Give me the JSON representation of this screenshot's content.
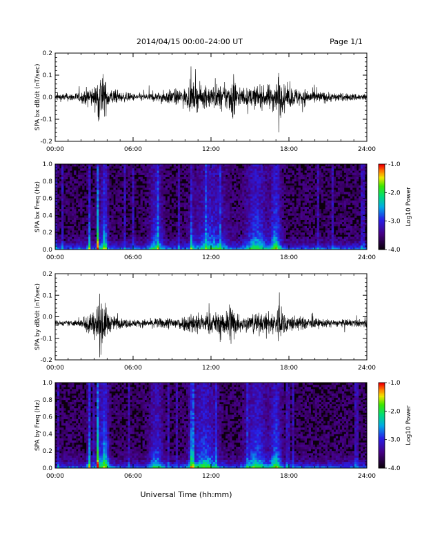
{
  "header": {
    "title": "2014/04/15  00:00–24:00 UT",
    "page": "Page 1/1"
  },
  "xlabel": "Universal Time (hh:mm)",
  "chart_data": [
    {
      "type": "line",
      "ylabel": "SPA bx dB/dt (nT/sec)",
      "xlim": [
        0,
        24
      ],
      "ylim": [
        -0.2,
        0.2
      ],
      "xticks": [
        "00:00",
        "06:00",
        "12:00",
        "18:00",
        "24:00"
      ],
      "yticks": [
        "-0.2",
        "-0.1",
        "0.0",
        "0.1",
        "0.2"
      ],
      "series": [
        {
          "x": [
            0,
            1,
            2,
            2.7,
            3,
            3.4,
            3.6,
            3.8,
            4.2,
            5,
            6,
            7,
            8,
            9,
            10,
            10.5,
            11,
            11.5,
            12,
            12.5,
            13,
            13.5,
            13.8,
            14,
            14.5,
            15,
            15.5,
            16,
            16.5,
            17,
            17.2,
            17.5,
            18,
            19,
            20,
            21,
            22,
            23,
            24
          ],
          "amplitude": [
            0.03,
            0.03,
            0.04,
            0.09,
            0.06,
            0.22,
            0.22,
            0.14,
            0.07,
            0.04,
            0.03,
            0.03,
            0.04,
            0.06,
            0.07,
            0.11,
            0.1,
            0.08,
            0.09,
            0.1,
            0.09,
            0.13,
            0.22,
            0.08,
            0.07,
            0.07,
            0.09,
            0.08,
            0.1,
            0.12,
            0.22,
            0.1,
            0.08,
            0.07,
            0.05,
            0.04,
            0.03,
            0.03,
            0.03
          ]
        }
      ]
    },
    {
      "type": "heatmap",
      "ylabel": "SPA bx Freq (Hz)",
      "xlim": [
        0,
        24
      ],
      "ylim": [
        0,
        1.0
      ],
      "xticks": [
        "00:00",
        "06:00",
        "12:00",
        "18:00",
        "24:00"
      ],
      "yticks": [
        "0.0",
        "0.2",
        "0.4",
        "0.6",
        "0.8",
        "1.0"
      ],
      "colorbar": {
        "label": "Log10 Power",
        "range": [
          -4.0,
          -1.0
        ],
        "ticks": [
          "-1.0",
          "-2.0",
          "-3.0",
          "-4.0"
        ]
      },
      "hotspots": [
        {
          "t": 2.6,
          "spread": 0.08,
          "strength": 0.5
        },
        {
          "t": 3.3,
          "spread": 0.1,
          "strength": 0.7
        },
        {
          "t": 3.8,
          "spread": 0.25,
          "strength": 0.45
        },
        {
          "t": 7.8,
          "spread": 0.5,
          "strength": 0.3
        },
        {
          "t": 10.5,
          "spread": 0.12,
          "strength": 0.35
        },
        {
          "t": 12.0,
          "spread": 1.2,
          "strength": 0.3
        },
        {
          "t": 15.5,
          "spread": 0.8,
          "strength": 0.35
        },
        {
          "t": 17.0,
          "spread": 0.4,
          "strength": 0.4
        }
      ]
    },
    {
      "type": "line",
      "ylabel": "SPA by dB/dt (nT/sec)",
      "xlim": [
        0,
        24
      ],
      "ylim": [
        -0.2,
        0.2
      ],
      "xticks": [
        "00:00",
        "06:00",
        "12:00",
        "18:00",
        "24:00"
      ],
      "yticks": [
        "-0.2",
        "-0.1",
        "0.0",
        "0.1",
        "0.2"
      ],
      "series": [
        {
          "x": [
            0,
            1,
            2,
            2.7,
            3,
            3.4,
            3.6,
            3.8,
            4.2,
            5,
            6,
            7,
            8,
            9,
            10,
            10.5,
            11,
            11.5,
            12,
            12.5,
            13,
            13.5,
            14,
            14.5,
            15,
            15.5,
            16,
            16.5,
            17,
            17.2,
            17.5,
            18,
            19,
            20,
            21,
            22,
            23,
            24
          ],
          "amplitude": [
            0.02,
            0.02,
            0.03,
            0.12,
            0.08,
            0.22,
            0.22,
            0.16,
            0.07,
            0.04,
            0.03,
            0.03,
            0.04,
            0.05,
            0.06,
            0.09,
            0.09,
            0.07,
            0.08,
            0.09,
            0.08,
            0.2,
            0.08,
            0.06,
            0.07,
            0.09,
            0.07,
            0.09,
            0.1,
            0.18,
            0.09,
            0.07,
            0.05,
            0.04,
            0.03,
            0.03,
            0.03,
            0.03
          ]
        }
      ]
    },
    {
      "type": "heatmap",
      "ylabel": "SPA by Freq (Hz)",
      "xlim": [
        0,
        24
      ],
      "ylim": [
        0,
        1.0
      ],
      "xticks": [
        "00:00",
        "06:00",
        "12:00",
        "18:00",
        "24:00"
      ],
      "yticks": [
        "0.0",
        "0.2",
        "0.4",
        "0.6",
        "0.8",
        "1.0"
      ],
      "colorbar": {
        "label": "Log10 Power",
        "range": [
          -4.0,
          -1.0
        ],
        "ticks": [
          "-1.0",
          "-2.0",
          "-3.0",
          "-4.0"
        ]
      },
      "hotspots": [
        {
          "t": 2.6,
          "spread": 0.1,
          "strength": 0.55
        },
        {
          "t": 3.3,
          "spread": 0.12,
          "strength": 0.75
        },
        {
          "t": 3.8,
          "spread": 0.3,
          "strength": 0.5
        },
        {
          "t": 7.8,
          "spread": 0.5,
          "strength": 0.3
        },
        {
          "t": 10.5,
          "spread": 0.15,
          "strength": 0.4
        },
        {
          "t": 11.5,
          "spread": 1.0,
          "strength": 0.35
        },
        {
          "t": 15.5,
          "spread": 0.8,
          "strength": 0.35
        },
        {
          "t": 17.0,
          "spread": 0.4,
          "strength": 0.4
        }
      ]
    }
  ]
}
